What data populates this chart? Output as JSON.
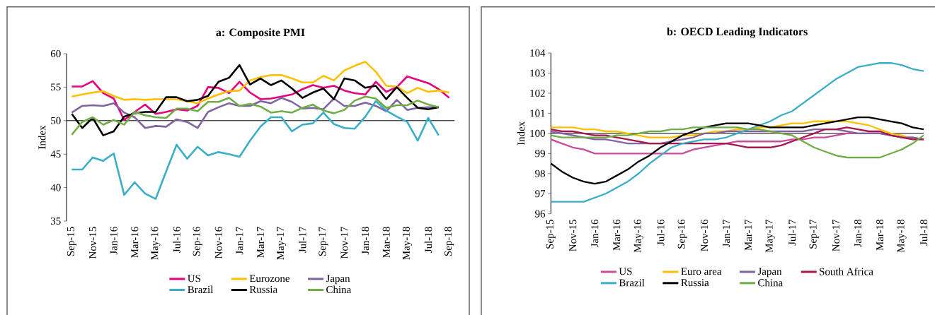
{
  "chart_data": [
    {
      "type": "line",
      "title": "a: Composite PMI",
      "ylabel": "Index",
      "legend": "bottom",
      "categories": [
        "Sep-15",
        null,
        "Nov-15",
        null,
        "Jan-16",
        null,
        "Mar-16",
        null,
        "May-16",
        null,
        "Jul-16",
        null,
        "Sep-16",
        null,
        "Nov-16",
        null,
        "Jan-17",
        null,
        "Mar-17",
        null,
        "May-17",
        null,
        "Jul-17",
        null,
        "Sep-17",
        null,
        "Nov-17",
        null,
        "Jan-18",
        null,
        "Mar-18",
        null,
        "May-18",
        null,
        "Jul-18",
        null,
        "Sep-18"
      ],
      "ylim": [
        35,
        60
      ],
      "yticks": [
        35,
        40,
        45,
        50,
        55,
        60
      ],
      "ref_lines": [
        {
          "axis": "y",
          "value": 50,
          "color": "#000000"
        }
      ],
      "series": [
        {
          "name": "US",
          "color": "#e6007e",
          "values": [
            55.1,
            55.1,
            55.9,
            54.1,
            53.3,
            50.1,
            51.3,
            52.4,
            51.0,
            51.3,
            51.7,
            51.5,
            52.2,
            55.0,
            54.9,
            54.1,
            55.8,
            54.2,
            53.2,
            53.3,
            53.6,
            53.9,
            54.7,
            55.3,
            54.9,
            55.2,
            54.5,
            54.1,
            53.9,
            55.8,
            54.3,
            55.0,
            56.6,
            56.1,
            55.6,
            54.7,
            53.4
          ]
        },
        {
          "name": "Eurozone",
          "color": "#ffc000",
          "values": [
            53.6,
            53.9,
            54.2,
            54.4,
            53.7,
            53.1,
            53.2,
            53.1,
            53.2,
            53.2,
            53.2,
            52.9,
            52.6,
            53.3,
            53.9,
            54.4,
            54.5,
            56.0,
            56.5,
            56.8,
            56.8,
            56.3,
            55.7,
            55.7,
            56.7,
            56.0,
            57.5,
            58.2,
            58.8,
            57.3,
            55.2,
            55.1,
            54.1,
            54.9,
            54.3,
            54.5,
            54.2
          ]
        },
        {
          "name": "Japan",
          "color": "#8064a2",
          "values": [
            51.2,
            52.2,
            52.3,
            52.2,
            52.6,
            51.2,
            50.5,
            48.9,
            49.2,
            49.1,
            50.2,
            49.8,
            48.9,
            51.3,
            52.0,
            52.6,
            52.2,
            52.2,
            52.9,
            52.6,
            53.4,
            52.8,
            51.8,
            51.9,
            51.7,
            53.3,
            52.2,
            52.2,
            52.7,
            52.2,
            51.4,
            53.1,
            51.6,
            51.9,
            52.0,
            52.0,
            null
          ]
        },
        {
          "name": "Brazil",
          "color": "#3aaec8",
          "values": [
            42.7,
            42.7,
            44.5,
            44.0,
            45.1,
            38.9,
            40.8,
            39.1,
            38.3,
            42.4,
            46.4,
            44.3,
            46.1,
            44.8,
            45.3,
            45.0,
            44.6,
            47.0,
            49.1,
            50.5,
            50.5,
            48.4,
            49.4,
            49.6,
            51.2,
            49.5,
            48.9,
            48.8,
            50.6,
            52.9,
            51.5,
            50.6,
            49.8,
            47.0,
            50.4,
            47.8,
            null
          ]
        },
        {
          "name": "Russia",
          "color": "#000000",
          "values": [
            51.0,
            48.9,
            50.4,
            47.8,
            48.4,
            50.6,
            51.1,
            51.3,
            51.3,
            53.5,
            53.5,
            52.9,
            53.1,
            53.7,
            55.8,
            56.4,
            58.3,
            55.4,
            56.3,
            55.3,
            56.0,
            54.8,
            53.4,
            54.2,
            54.8,
            53.2,
            56.3,
            56.0,
            54.9,
            55.2,
            53.2,
            55.0,
            53.4,
            51.9,
            51.7,
            52.0,
            null
          ]
        },
        {
          "name": "China",
          "color": "#70ad47",
          "values": [
            47.9,
            49.8,
            50.5,
            49.4,
            50.1,
            49.4,
            51.3,
            50.8,
            50.5,
            50.4,
            51.8,
            51.8,
            51.4,
            52.8,
            52.8,
            53.4,
            52.2,
            52.5,
            52.1,
            51.2,
            51.4,
            51.2,
            51.9,
            52.4,
            51.5,
            51.1,
            51.6,
            53.0,
            53.6,
            53.3,
            51.9,
            52.3,
            52.3,
            53.0,
            52.4,
            52.0,
            null
          ]
        }
      ]
    },
    {
      "type": "line",
      "title": "b: OECD Leading Indicators",
      "ylabel": "Index",
      "legend": "bottom",
      "categories": [
        "Sep-15",
        null,
        "Nov-15",
        null,
        "Jan-16",
        null,
        "Mar-16",
        null,
        "May-16",
        null,
        "Jul-16",
        null,
        "Sep-16",
        null,
        "Nov-16",
        null,
        "Jan-17",
        null,
        "Mar-17",
        null,
        "May-17",
        null,
        "Jul-17",
        null,
        "Sep-17",
        null,
        "Nov-17",
        null,
        "Jan-18",
        null,
        "Mar-18",
        null,
        "May-18",
        null,
        "Jul-18"
      ],
      "ylim": [
        96,
        104
      ],
      "yticks": [
        96,
        97,
        98,
        99,
        100,
        101,
        102,
        103,
        104
      ],
      "ref_lines": [
        {
          "axis": "y",
          "value": 100,
          "color": "#000000"
        }
      ],
      "series": [
        {
          "name": "US",
          "color": "#cc4c9c",
          "values": [
            99.7,
            99.5,
            99.3,
            99.2,
            99.0,
            99.0,
            99.0,
            99.0,
            99.0,
            99.0,
            99.0,
            99.0,
            99.0,
            99.2,
            99.3,
            99.4,
            99.5,
            99.6,
            99.6,
            99.6,
            99.6,
            99.6,
            99.7,
            99.7,
            99.8,
            99.8,
            99.9,
            100.0,
            100.0,
            100.0,
            100.0,
            99.9,
            99.8,
            99.8,
            99.7
          ]
        },
        {
          "name": "Euro area",
          "color": "#ffc000",
          "values": [
            100.3,
            100.3,
            100.3,
            100.2,
            100.2,
            100.1,
            100.1,
            100.0,
            99.9,
            99.8,
            99.8,
            99.8,
            99.9,
            99.9,
            100.0,
            100.1,
            100.1,
            100.2,
            100.2,
            100.3,
            100.3,
            100.4,
            100.5,
            100.5,
            100.6,
            100.6,
            100.6,
            100.6,
            100.5,
            100.4,
            100.2,
            100.0,
            99.9,
            99.7,
            99.7
          ]
        },
        {
          "name": "Japan",
          "color": "#8064a2",
          "values": [
            100.1,
            100.0,
            99.9,
            99.8,
            99.7,
            99.7,
            99.6,
            99.5,
            99.5,
            99.5,
            99.5,
            99.6,
            99.7,
            99.8,
            100.0,
            100.0,
            100.1,
            100.1,
            100.1,
            100.1,
            100.1,
            100.1,
            100.1,
            100.1,
            100.2,
            100.2,
            100.2,
            100.1,
            100.0,
            100.0,
            100.0,
            99.9,
            99.8,
            99.8,
            99.7
          ]
        },
        {
          "name": "South Africa",
          "color": "#a5174f",
          "values": [
            100.2,
            100.1,
            100.1,
            100.0,
            99.9,
            99.9,
            99.8,
            99.7,
            99.6,
            99.5,
            99.5,
            99.5,
            99.5,
            99.5,
            99.5,
            99.5,
            99.5,
            99.4,
            99.3,
            99.3,
            99.3,
            99.4,
            99.6,
            99.8,
            100.0,
            100.2,
            100.2,
            100.3,
            100.2,
            100.1,
            100.1,
            99.9,
            99.8,
            99.7,
            99.7
          ]
        },
        {
          "name": "Brazil",
          "color": "#3aaec8",
          "values": [
            96.6,
            96.6,
            96.6,
            96.6,
            96.8,
            97.0,
            97.3,
            97.6,
            98.0,
            98.5,
            98.9,
            99.3,
            99.5,
            99.6,
            99.7,
            99.7,
            99.8,
            100.0,
            100.2,
            100.4,
            100.6,
            100.9,
            101.1,
            101.5,
            101.9,
            102.3,
            102.7,
            103.0,
            103.3,
            103.4,
            103.5,
            103.5,
            103.4,
            103.2,
            103.1
          ]
        },
        {
          "name": "Russia",
          "color": "#000000",
          "values": [
            98.5,
            98.1,
            97.8,
            97.6,
            97.5,
            97.6,
            97.9,
            98.2,
            98.6,
            98.9,
            99.3,
            99.6,
            99.9,
            100.1,
            100.3,
            100.4,
            100.5,
            100.5,
            100.5,
            100.4,
            100.3,
            100.3,
            100.3,
            100.3,
            100.4,
            100.5,
            100.6,
            100.7,
            100.8,
            100.8,
            100.7,
            100.6,
            100.5,
            100.3,
            100.2
          ]
        },
        {
          "name": "China",
          "color": "#70ad47",
          "values": [
            99.9,
            99.8,
            99.8,
            99.8,
            99.8,
            99.8,
            99.9,
            99.9,
            100.0,
            100.1,
            100.1,
            100.2,
            100.2,
            100.3,
            100.3,
            100.3,
            100.3,
            100.3,
            100.2,
            100.2,
            100.1,
            100.0,
            99.9,
            99.6,
            99.3,
            99.1,
            98.9,
            98.8,
            98.8,
            98.8,
            98.8,
            99.0,
            99.2,
            99.5,
            99.9
          ]
        }
      ]
    }
  ]
}
